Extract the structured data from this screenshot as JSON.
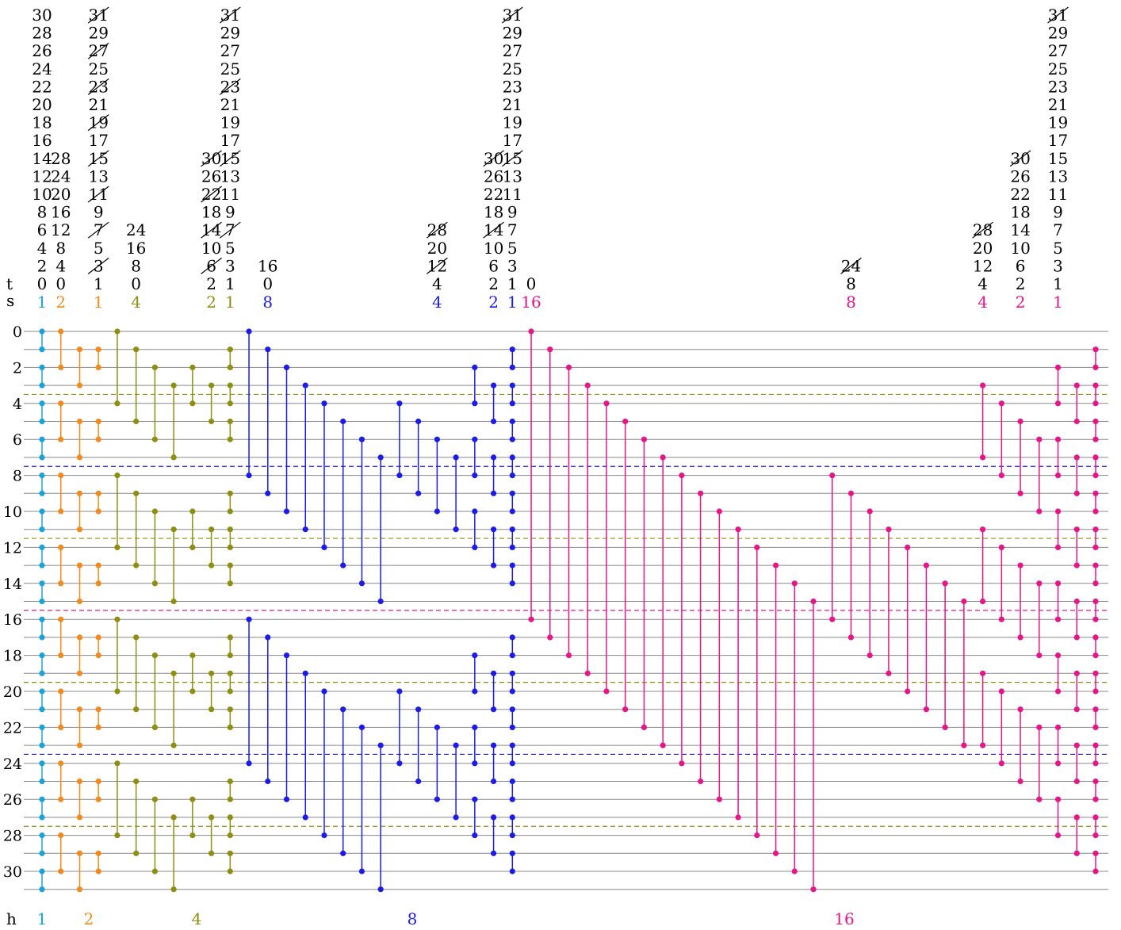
{
  "row_labels": [
    "t",
    "s",
    "h"
  ],
  "wire_indices": [
    "0",
    "2",
    "4",
    "6",
    "8",
    "10",
    "12",
    "14",
    "16",
    "18",
    "20",
    "22",
    "24",
    "26",
    "28",
    "30"
  ],
  "colors": {
    "c1": "#1aa3d6",
    "c2": "#f28a1c",
    "c4": "#8e8e10",
    "c8": "#1c1ce6",
    "c16": "#e6158a",
    "wire": "#888888",
    "text": "#000000"
  },
  "h_labels": [
    {
      "text": "1",
      "color": "c1"
    },
    {
      "text": "2",
      "color": "c2"
    },
    {
      "text": "4",
      "color": "c4"
    },
    {
      "text": "8",
      "color": "c8"
    },
    {
      "text": "16",
      "color": "c16"
    }
  ],
  "s_labels": [
    "1",
    "2",
    "1",
    "4",
    "2",
    "1",
    "8",
    "4",
    "2",
    "1",
    "16",
    "8",
    "4",
    "2",
    "1"
  ],
  "t_columns": [
    {
      "values": [
        "0",
        "2",
        "4",
        "6",
        "8",
        "10",
        "12",
        "14",
        "16",
        "18",
        "20",
        "22",
        "24",
        "26",
        "28",
        "30"
      ],
      "struck": []
    },
    {
      "values": [
        "0",
        "4",
        "8",
        "12",
        "16",
        "20",
        "24",
        "28"
      ],
      "struck": []
    },
    {
      "values": [
        "1",
        "3",
        "5",
        "7",
        "9",
        "11",
        "13",
        "15",
        "17",
        "19",
        "21",
        "23",
        "25",
        "27",
        "29",
        "31"
      ],
      "struck": [
        "3",
        "7",
        "11",
        "15",
        "19",
        "23",
        "27",
        "31"
      ]
    },
    {
      "values": [
        "0",
        "8",
        "16",
        "24"
      ],
      "struck": []
    },
    {
      "values": [
        "2",
        "6",
        "10",
        "14",
        "18",
        "22",
        "26",
        "30"
      ],
      "struck": [
        "6",
        "14",
        "22",
        "30"
      ]
    },
    {
      "values": [
        "1",
        "3",
        "5",
        "7",
        "9",
        "11",
        "13",
        "15",
        "17",
        "19",
        "21",
        "23",
        "25",
        "27",
        "29",
        "31"
      ],
      "struck": [
        "7",
        "15",
        "23",
        "31"
      ]
    },
    {
      "values": [
        "0",
        "16"
      ],
      "struck": []
    },
    {
      "values": [
        "4",
        "12",
        "20",
        "28"
      ],
      "struck": [
        "12",
        "28"
      ]
    },
    {
      "values": [
        "2",
        "6",
        "10",
        "14",
        "18",
        "22",
        "26",
        "30"
      ],
      "struck": [
        "14",
        "30"
      ]
    },
    {
      "values": [
        "1",
        "3",
        "5",
        "7",
        "9",
        "11",
        "13",
        "15",
        "17",
        "19",
        "21",
        "23",
        "25",
        "27",
        "29",
        "31"
      ],
      "struck": [
        "15",
        "31"
      ]
    },
    {
      "values": [
        "0"
      ],
      "struck": []
    },
    {
      "values": [
        "8",
        "24"
      ],
      "struck": [
        "24"
      ]
    },
    {
      "values": [
        "4",
        "12",
        "20",
        "28"
      ],
      "struck": [
        "28"
      ]
    },
    {
      "values": [
        "2",
        "6",
        "10",
        "14",
        "18",
        "22",
        "26",
        "30"
      ],
      "struck": [
        "30"
      ]
    },
    {
      "values": [
        "1",
        "3",
        "5",
        "7",
        "9",
        "11",
        "13",
        "15",
        "17",
        "19",
        "21",
        "23",
        "25",
        "27",
        "29",
        "31"
      ],
      "struck": [
        "31"
      ]
    }
  ],
  "layers": [
    {
      "color": "c1",
      "gates": [
        [
          0,
          1
        ],
        [
          2,
          3
        ],
        [
          4,
          5
        ],
        [
          6,
          7
        ],
        [
          8,
          9
        ],
        [
          10,
          11
        ],
        [
          12,
          13
        ],
        [
          14,
          15
        ],
        [
          16,
          17
        ],
        [
          18,
          19
        ],
        [
          20,
          21
        ],
        [
          22,
          23
        ],
        [
          24,
          25
        ],
        [
          26,
          27
        ],
        [
          28,
          29
        ],
        [
          30,
          31
        ]
      ]
    },
    {
      "color": "c2",
      "gates": [
        [
          0,
          2
        ],
        [
          4,
          6
        ],
        [
          8,
          10
        ],
        [
          12,
          14
        ],
        [
          16,
          18
        ],
        [
          20,
          22
        ],
        [
          24,
          26
        ],
        [
          28,
          30
        ]
      ]
    },
    {
      "color": "c2",
      "gates": [
        [
          1,
          3
        ],
        [
          5,
          7
        ],
        [
          9,
          11
        ],
        [
          13,
          15
        ],
        [
          17,
          19
        ],
        [
          21,
          23
        ],
        [
          25,
          27
        ],
        [
          29,
          31
        ]
      ]
    },
    {
      "color": "c2",
      "gates": [
        [
          1,
          2
        ],
        [
          5,
          6
        ],
        [
          9,
          10
        ],
        [
          13,
          14
        ],
        [
          17,
          18
        ],
        [
          21,
          22
        ],
        [
          25,
          26
        ],
        [
          29,
          30
        ]
      ]
    },
    {
      "color": "c4",
      "gates": [
        [
          0,
          4
        ],
        [
          8,
          12
        ],
        [
          16,
          20
        ],
        [
          24,
          28
        ]
      ]
    },
    {
      "color": "c4",
      "gates": [
        [
          1,
          5
        ],
        [
          9,
          13
        ],
        [
          17,
          21
        ],
        [
          25,
          29
        ]
      ]
    },
    {
      "color": "c4",
      "gates": [
        [
          2,
          6
        ],
        [
          10,
          14
        ],
        [
          18,
          22
        ],
        [
          26,
          30
        ]
      ]
    },
    {
      "color": "c4",
      "gates": [
        [
          3,
          7
        ],
        [
          11,
          15
        ],
        [
          19,
          23
        ],
        [
          27,
          31
        ]
      ]
    },
    {
      "color": "c4",
      "gates": [
        [
          2,
          4
        ],
        [
          10,
          12
        ],
        [
          18,
          20
        ],
        [
          26,
          28
        ]
      ]
    },
    {
      "color": "c4",
      "gates": [
        [
          3,
          5
        ],
        [
          11,
          13
        ],
        [
          19,
          21
        ],
        [
          27,
          29
        ]
      ]
    },
    {
      "color": "c4",
      "gates": [
        [
          1,
          2
        ],
        [
          3,
          4
        ],
        [
          5,
          6
        ],
        [
          9,
          10
        ],
        [
          11,
          12
        ],
        [
          13,
          14
        ],
        [
          17,
          18
        ],
        [
          19,
          20
        ],
        [
          21,
          22
        ],
        [
          25,
          26
        ],
        [
          27,
          28
        ],
        [
          29,
          30
        ]
      ]
    },
    {
      "color": "c8",
      "gates": [
        [
          0,
          8
        ],
        [
          16,
          24
        ]
      ]
    },
    {
      "color": "c8",
      "gates": [
        [
          1,
          9
        ],
        [
          17,
          25
        ]
      ]
    },
    {
      "color": "c8",
      "gates": [
        [
          2,
          10
        ],
        [
          18,
          26
        ]
      ]
    },
    {
      "color": "c8",
      "gates": [
        [
          3,
          11
        ],
        [
          19,
          27
        ]
      ]
    },
    {
      "color": "c8",
      "gates": [
        [
          4,
          12
        ],
        [
          20,
          28
        ]
      ]
    },
    {
      "color": "c8",
      "gates": [
        [
          5,
          13
        ],
        [
          21,
          29
        ]
      ]
    },
    {
      "color": "c8",
      "gates": [
        [
          6,
          14
        ],
        [
          22,
          30
        ]
      ]
    },
    {
      "color": "c8",
      "gates": [
        [
          7,
          15
        ],
        [
          23,
          31
        ]
      ]
    },
    {
      "color": "c8",
      "gates": [
        [
          4,
          8
        ],
        [
          20,
          24
        ]
      ]
    },
    {
      "color": "c8",
      "gates": [
        [
          5,
          9
        ],
        [
          21,
          25
        ]
      ]
    },
    {
      "color": "c8",
      "gates": [
        [
          6,
          10
        ],
        [
          22,
          26
        ]
      ]
    },
    {
      "color": "c8",
      "gates": [
        [
          7,
          11
        ],
        [
          23,
          27
        ]
      ]
    },
    {
      "color": "c8",
      "gates": [
        [
          2,
          4
        ],
        [
          6,
          8
        ],
        [
          10,
          12
        ],
        [
          18,
          20
        ],
        [
          22,
          24
        ],
        [
          26,
          28
        ]
      ]
    },
    {
      "color": "c8",
      "gates": [
        [
          3,
          5
        ],
        [
          7,
          9
        ],
        [
          11,
          13
        ],
        [
          19,
          21
        ],
        [
          23,
          25
        ],
        [
          27,
          29
        ]
      ]
    },
    {
      "color": "c8",
      "gates": [
        [
          1,
          2
        ],
        [
          3,
          4
        ],
        [
          5,
          6
        ],
        [
          7,
          8
        ],
        [
          9,
          10
        ],
        [
          11,
          12
        ],
        [
          13,
          14
        ],
        [
          17,
          18
        ],
        [
          19,
          20
        ],
        [
          21,
          22
        ],
        [
          23,
          24
        ],
        [
          25,
          26
        ],
        [
          27,
          28
        ],
        [
          29,
          30
        ]
      ]
    },
    {
      "color": "c16",
      "gates": [
        [
          0,
          16
        ]
      ]
    },
    {
      "color": "c16",
      "gates": [
        [
          1,
          17
        ]
      ]
    },
    {
      "color": "c16",
      "gates": [
        [
          2,
          18
        ]
      ]
    },
    {
      "color": "c16",
      "gates": [
        [
          3,
          19
        ]
      ]
    },
    {
      "color": "c16",
      "gates": [
        [
          4,
          20
        ]
      ]
    },
    {
      "color": "c16",
      "gates": [
        [
          5,
          21
        ]
      ]
    },
    {
      "color": "c16",
      "gates": [
        [
          6,
          22
        ]
      ]
    },
    {
      "color": "c16",
      "gates": [
        [
          7,
          23
        ]
      ]
    },
    {
      "color": "c16",
      "gates": [
        [
          8,
          24
        ]
      ]
    },
    {
      "color": "c16",
      "gates": [
        [
          9,
          25
        ]
      ]
    },
    {
      "color": "c16",
      "gates": [
        [
          10,
          26
        ]
      ]
    },
    {
      "color": "c16",
      "gates": [
        [
          11,
          27
        ]
      ]
    },
    {
      "color": "c16",
      "gates": [
        [
          12,
          28
        ]
      ]
    },
    {
      "color": "c16",
      "gates": [
        [
          13,
          29
        ]
      ]
    },
    {
      "color": "c16",
      "gates": [
        [
          14,
          30
        ]
      ]
    },
    {
      "color": "c16",
      "gates": [
        [
          15,
          31
        ]
      ]
    },
    {
      "color": "c16",
      "gates": [
        [
          8,
          16
        ]
      ]
    },
    {
      "color": "c16",
      "gates": [
        [
          9,
          17
        ]
      ]
    },
    {
      "color": "c16",
      "gates": [
        [
          10,
          18
        ]
      ]
    },
    {
      "color": "c16",
      "gates": [
        [
          11,
          19
        ]
      ]
    },
    {
      "color": "c16",
      "gates": [
        [
          12,
          20
        ]
      ]
    },
    {
      "color": "c16",
      "gates": [
        [
          13,
          21
        ]
      ]
    },
    {
      "color": "c16",
      "gates": [
        [
          14,
          22
        ]
      ]
    },
    {
      "color": "c16",
      "gates": [
        [
          15,
          23
        ]
      ]
    },
    {
      "color": "c16",
      "gates": [
        [
          3,
          7
        ],
        [
          11,
          15
        ],
        [
          19,
          23
        ]
      ]
    },
    {
      "color": "c16",
      "gates": [
        [
          4,
          8
        ],
        [
          12,
          16
        ],
        [
          20,
          24
        ]
      ]
    },
    {
      "color": "c16",
      "gates": [
        [
          5,
          9
        ],
        [
          13,
          17
        ],
        [
          21,
          25
        ]
      ]
    },
    {
      "color": "c16",
      "gates": [
        [
          6,
          10
        ],
        [
          14,
          18
        ],
        [
          22,
          26
        ]
      ]
    },
    {
      "color": "c16",
      "gates": [
        [
          2,
          4
        ],
        [
          6,
          8
        ],
        [
          10,
          12
        ],
        [
          14,
          16
        ],
        [
          18,
          20
        ],
        [
          22,
          24
        ],
        [
          26,
          28
        ]
      ]
    },
    {
      "color": "c16",
      "gates": [
        [
          3,
          5
        ],
        [
          7,
          9
        ],
        [
          11,
          13
        ],
        [
          15,
          17
        ],
        [
          19,
          21
        ],
        [
          23,
          25
        ],
        [
          27,
          29
        ]
      ]
    },
    {
      "color": "c16",
      "gates": [
        [
          1,
          2
        ],
        [
          3,
          4
        ],
        [
          5,
          6
        ],
        [
          7,
          8
        ],
        [
          9,
          10
        ],
        [
          11,
          12
        ],
        [
          13,
          14
        ],
        [
          15,
          16
        ],
        [
          17,
          18
        ],
        [
          19,
          20
        ],
        [
          21,
          22
        ],
        [
          23,
          24
        ],
        [
          25,
          26
        ],
        [
          27,
          28
        ],
        [
          29,
          30
        ]
      ]
    }
  ],
  "dashed_lines": [
    {
      "between": 3,
      "color": "c4"
    },
    {
      "between": 7,
      "color": "c8"
    },
    {
      "between": 11,
      "color": "c4"
    },
    {
      "between": 15,
      "color": "c16"
    },
    {
      "between": 19,
      "color": "c4"
    },
    {
      "between": 23,
      "color": "c8"
    },
    {
      "between": 27,
      "color": "c4"
    }
  ]
}
